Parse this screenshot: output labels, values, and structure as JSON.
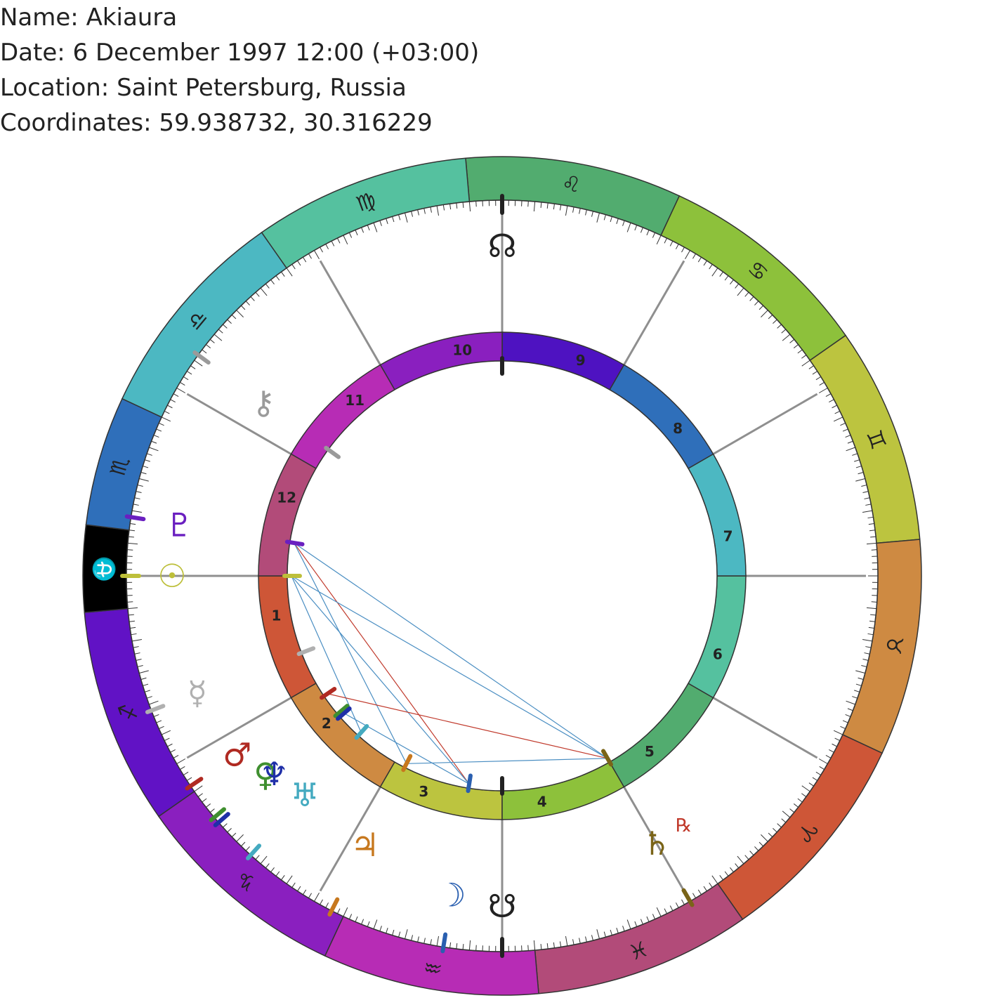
{
  "header": {
    "name": "Name: Akiaura",
    "date": "Date: 6 December 1997 12:00 (+03:00)",
    "location": "Location: Saint Petersburg, Russia",
    "coordinates": "Coordinates: 59.938732, 30.316229"
  },
  "zodiac": [
    {
      "glyph": "♌",
      "color": "#52ac6f",
      "start": 0,
      "span": 30
    },
    {
      "glyph": "♋",
      "color": "#8dc13b",
      "start": 30,
      "span": 30
    },
    {
      "glyph": "♊",
      "color": "#bcc43f",
      "start": 60,
      "span": 30
    },
    {
      "glyph": "♉",
      "color": "#ce8a42",
      "start": 90,
      "span": 30
    },
    {
      "glyph": "♈",
      "color": "#ce5637",
      "start": 120,
      "span": 30
    },
    {
      "glyph": "♓",
      "color": "#b24b79",
      "start": 150,
      "span": 30
    },
    {
      "glyph": "♒",
      "color": "#b72cb5",
      "start": 180,
      "span": 30
    },
    {
      "glyph": "♑",
      "color": "#8a1fbf",
      "start": 210,
      "span": 30
    },
    {
      "glyph": "♐",
      "color": "#6112c5",
      "start": 240,
      "span": 30
    },
    {
      "glyph": "⛎",
      "color": "#000000",
      "start": 270,
      "span": 12
    },
    {
      "glyph": "♏",
      "color": "#2f6fba",
      "start": 282,
      "span": 18
    },
    {
      "glyph": "♎",
      "color": "#4cb8c2",
      "start": 300,
      "span": 30
    },
    {
      "glyph": "♍",
      "color": "#55c19f",
      "start": 330,
      "span": 30
    }
  ],
  "houses": [
    {
      "num": "1",
      "color": "#ce5637"
    },
    {
      "num": "2",
      "color": "#ce8a42"
    },
    {
      "num": "3",
      "color": "#bcc43f"
    },
    {
      "num": "4",
      "color": "#8dc13b"
    },
    {
      "num": "5",
      "color": "#52ac6f"
    },
    {
      "num": "6",
      "color": "#55c19f"
    },
    {
      "num": "7",
      "color": "#4cb8c2"
    },
    {
      "num": "8",
      "color": "#2f6fba"
    },
    {
      "num": "9",
      "color": "#4e12c1"
    },
    {
      "num": "10",
      "color": "#8a1fbf"
    },
    {
      "num": "11",
      "color": "#b72cb5"
    },
    {
      "num": "12",
      "color": "#b24b79"
    }
  ],
  "planets": [
    {
      "name": "pluto",
      "glyph": "♇",
      "color": "#6a1fc0"
    },
    {
      "name": "sun",
      "glyph": "☉",
      "color": "#bdbf3a"
    },
    {
      "name": "mercury",
      "glyph": "☿",
      "color": "#b0b0b0"
    },
    {
      "name": "mars",
      "glyph": "♂",
      "color": "#b02a22"
    },
    {
      "name": "venus",
      "glyph": "♀",
      "color": "#3f8f2f"
    },
    {
      "name": "neptune",
      "glyph": "♆",
      "color": "#1f2fa8"
    },
    {
      "name": "uranus",
      "glyph": "♅",
      "color": "#44aac0"
    },
    {
      "name": "jupiter",
      "glyph": "♃",
      "color": "#c7781e"
    },
    {
      "name": "moon",
      "glyph": "☽",
      "color": "#2a5fb0"
    },
    {
      "name": "saturn",
      "glyph": "♄",
      "color": "#7a6418"
    },
    {
      "name": "chiron",
      "glyph": "⚷",
      "color": "#9a9a9a"
    },
    {
      "name": "north-node",
      "glyph": "☊",
      "color": "#222222"
    },
    {
      "name": "south-node",
      "glyph": "☋",
      "color": "#222222"
    }
  ],
  "retrograde": {
    "label": "℞",
    "color": "#c0392b"
  }
}
